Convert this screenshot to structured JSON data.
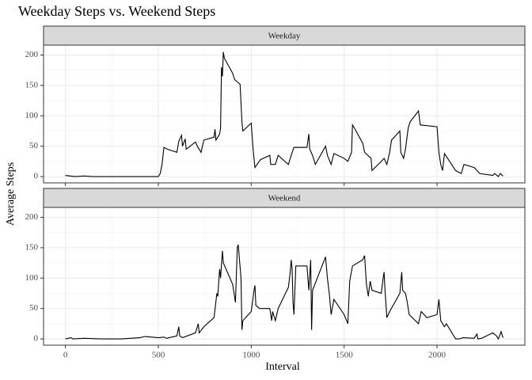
{
  "chart_data": {
    "type": "line",
    "title": "Weekday Steps vs. Weekend Steps",
    "x_label": "Interval",
    "y_label": "Average Steps",
    "xlim": [
      -117.75,
      2472.75
    ],
    "xticks": [
      0,
      500,
      1000,
      1500,
      2000
    ],
    "ylim": [
      -10.3,
      216.3
    ],
    "yticks": [
      0,
      50,
      100,
      150,
      200
    ],
    "grid": true,
    "series": [
      {
        "name": "Weekday",
        "color": "#000000",
        "x": [
          0,
          50,
          100,
          150,
          300,
          400,
          500,
          510,
          520,
          530,
          550,
          600,
          610,
          625,
          630,
          645,
          650,
          700,
          710,
          730,
          745,
          800,
          805,
          810,
          820,
          830,
          835,
          840,
          845,
          850,
          855,
          900,
          910,
          940,
          950,
          955,
          1000,
          1010,
          1020,
          1050,
          1100,
          1105,
          1110,
          1130,
          1145,
          1200,
          1215,
          1230,
          1300,
          1310,
          1315,
          1330,
          1345,
          1400,
          1410,
          1430,
          1445,
          1500,
          1520,
          1540,
          1545,
          1555,
          1600,
          1610,
          1645,
          1650,
          1700,
          1715,
          1730,
          1745,
          1755,
          1800,
          1805,
          1820,
          1830,
          1845,
          1855,
          1900,
          1910,
          2000,
          2010,
          2020,
          2030,
          2040,
          2100,
          2130,
          2145,
          2200,
          2215,
          2230,
          2300,
          2310,
          2330,
          2340,
          2355
        ],
        "values": [
          2,
          0,
          1,
          0,
          0,
          0,
          0,
          5,
          20,
          48,
          45,
          40,
          58,
          68,
          50,
          62,
          45,
          57,
          50,
          40,
          60,
          65,
          78,
          60,
          65,
          70,
          80,
          180,
          165,
          205,
          195,
          170,
          160,
          152,
          90,
          75,
          88,
          45,
          15,
          28,
          35,
          20,
          20,
          20,
          35,
          20,
          35,
          48,
          48,
          70,
          45,
          35,
          20,
          50,
          35,
          20,
          38,
          30,
          25,
          40,
          85,
          80,
          55,
          40,
          30,
          10,
          25,
          30,
          20,
          40,
          60,
          75,
          40,
          30,
          45,
          80,
          90,
          108,
          85,
          82,
          40,
          20,
          10,
          38,
          10,
          5,
          20,
          15,
          10,
          5,
          2,
          5,
          0,
          5,
          1
        ]
      },
      {
        "name": "Weekend",
        "color": "#000000",
        "x": [
          0,
          30,
          40,
          100,
          200,
          300,
          400,
          430,
          500,
          530,
          545,
          600,
          610,
          615,
          630,
          700,
          715,
          720,
          745,
          800,
          815,
          820,
          830,
          835,
          845,
          850,
          900,
          915,
          925,
          930,
          945,
          950,
          955,
          1000,
          1015,
          1020,
          1025,
          1045,
          1100,
          1110,
          1115,
          1130,
          1145,
          1200,
          1210,
          1215,
          1220,
          1225,
          1230,
          1240,
          1300,
          1310,
          1320,
          1325,
          1330,
          1400,
          1410,
          1420,
          1430,
          1445,
          1500,
          1520,
          1530,
          1545,
          1600,
          1610,
          1620,
          1630,
          1640,
          1650,
          1700,
          1710,
          1715,
          1720,
          1730,
          1745,
          1800,
          1810,
          1815,
          1830,
          1840,
          1850,
          1900,
          1915,
          1930,
          1945,
          2000,
          2010,
          2020,
          2040,
          2050,
          2100,
          2120,
          2140,
          2200,
          2215,
          2220,
          2240,
          2300,
          2320,
          2330,
          2345,
          2355
        ],
        "values": [
          0,
          2,
          0,
          1,
          0,
          0,
          2,
          4,
          2,
          3,
          1,
          5,
          20,
          5,
          2,
          10,
          25,
          10,
          20,
          35,
          75,
          70,
          115,
          100,
          145,
          125,
          90,
          60,
          150,
          155,
          100,
          15,
          30,
          45,
          80,
          88,
          55,
          50,
          50,
          30,
          45,
          30,
          50,
          85,
          110,
          130,
          115,
          60,
          40,
          120,
          120,
          80,
          130,
          15,
          80,
          135,
          100,
          75,
          40,
          65,
          40,
          25,
          95,
          120,
          130,
          137,
          90,
          70,
          95,
          80,
          75,
          100,
          110,
          80,
          35,
          45,
          75,
          110,
          80,
          75,
          60,
          40,
          25,
          45,
          40,
          35,
          40,
          65,
          30,
          20,
          25,
          0,
          0,
          2,
          1,
          8,
          0,
          1,
          10,
          5,
          0,
          12,
          2
        ]
      }
    ]
  }
}
